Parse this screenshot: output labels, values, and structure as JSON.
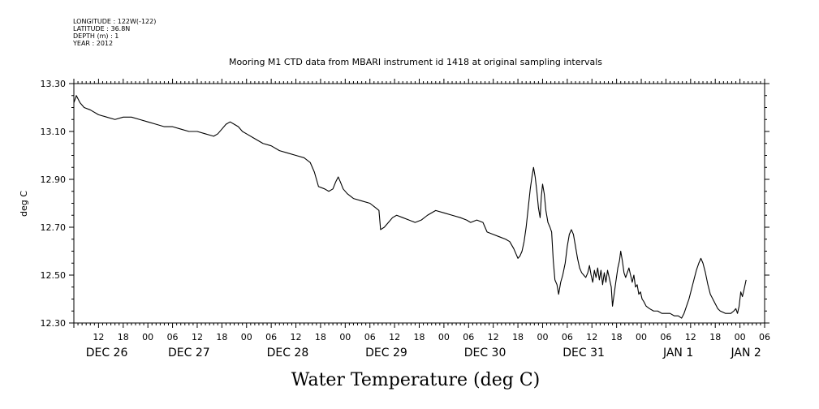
{
  "header": {
    "longitude": "LONGITUDE : 122W(-122)",
    "latitude": "LATITUDE : 36.8N",
    "depth": "DEPTH (m) : 1",
    "year": "YEAR : 2012"
  },
  "chart_data": {
    "type": "line",
    "title": "Mooring M1 CTD data from MBARI instrument id 1418 at original sampling intervals",
    "xlabel": "Water Temperature (deg C)",
    "ylabel": "deg C",
    "ylim": [
      12.3,
      13.3
    ],
    "xlim_hours": [
      0,
      168
    ],
    "y_ticks": [
      "12.30",
      "12.50",
      "12.70",
      "12.90",
      "13.10",
      "13.30"
    ],
    "x_hour_ticks": [
      {
        "h": 6,
        "label": "12"
      },
      {
        "h": 12,
        "label": "18"
      },
      {
        "h": 18,
        "label": "00"
      },
      {
        "h": 24,
        "label": "06"
      },
      {
        "h": 30,
        "label": "12"
      },
      {
        "h": 36,
        "label": "18"
      },
      {
        "h": 42,
        "label": "00"
      },
      {
        "h": 48,
        "label": "06"
      },
      {
        "h": 54,
        "label": "12"
      },
      {
        "h": 60,
        "label": "18"
      },
      {
        "h": 66,
        "label": "00"
      },
      {
        "h": 72,
        "label": "06"
      },
      {
        "h": 78,
        "label": "12"
      },
      {
        "h": 84,
        "label": "18"
      },
      {
        "h": 90,
        "label": "00"
      },
      {
        "h": 96,
        "label": "06"
      },
      {
        "h": 102,
        "label": "12"
      },
      {
        "h": 108,
        "label": "18"
      },
      {
        "h": 114,
        "label": "00"
      },
      {
        "h": 120,
        "label": "06"
      },
      {
        "h": 126,
        "label": "12"
      },
      {
        "h": 132,
        "label": "18"
      },
      {
        "h": 138,
        "label": "00"
      },
      {
        "h": 144,
        "label": "06"
      },
      {
        "h": 150,
        "label": "12"
      },
      {
        "h": 156,
        "label": "18"
      },
      {
        "h": 162,
        "label": "00"
      },
      {
        "h": 168,
        "label": "06"
      }
    ],
    "x_day_labels": [
      {
        "h": 8,
        "label": "DEC 26"
      },
      {
        "h": 28,
        "label": "DEC 27"
      },
      {
        "h": 52,
        "label": "DEC 28"
      },
      {
        "h": 76,
        "label": "DEC 29"
      },
      {
        "h": 100,
        "label": "DEC 30"
      },
      {
        "h": 124,
        "label": "DEC 31"
      },
      {
        "h": 147,
        "label": "JAN 1"
      },
      {
        "h": 163.5,
        "label": "JAN 2"
      }
    ],
    "series": [
      {
        "points": [
          [
            0,
            13.22
          ],
          [
            0.6,
            13.25
          ],
          [
            1.5,
            13.22
          ],
          [
            2.5,
            13.2
          ],
          [
            4,
            13.19
          ],
          [
            6,
            13.17
          ],
          [
            8,
            13.16
          ],
          [
            10,
            13.15
          ],
          [
            12,
            13.16
          ],
          [
            14,
            13.16
          ],
          [
            16,
            13.15
          ],
          [
            18,
            13.14
          ],
          [
            20,
            13.13
          ],
          [
            22,
            13.12
          ],
          [
            24,
            13.12
          ],
          [
            26,
            13.11
          ],
          [
            28,
            13.1
          ],
          [
            30,
            13.1
          ],
          [
            32,
            13.09
          ],
          [
            34,
            13.08
          ],
          [
            35,
            13.09
          ],
          [
            36,
            13.11
          ],
          [
            37,
            13.13
          ],
          [
            38,
            13.14
          ],
          [
            39,
            13.13
          ],
          [
            40,
            13.12
          ],
          [
            41,
            13.1
          ],
          [
            42,
            13.09
          ],
          [
            44,
            13.07
          ],
          [
            46,
            13.05
          ],
          [
            48,
            13.04
          ],
          [
            50,
            13.02
          ],
          [
            52,
            13.01
          ],
          [
            54,
            13.0
          ],
          [
            56,
            12.99
          ],
          [
            57.5,
            12.97
          ],
          [
            58.5,
            12.93
          ],
          [
            59.5,
            12.87
          ],
          [
            61,
            12.86
          ],
          [
            62,
            12.85
          ],
          [
            63,
            12.86
          ],
          [
            63.7,
            12.89
          ],
          [
            64.3,
            12.91
          ],
          [
            64.8,
            12.89
          ],
          [
            65.5,
            12.86
          ],
          [
            66.5,
            12.84
          ],
          [
            68,
            12.82
          ],
          [
            70,
            12.81
          ],
          [
            72,
            12.8
          ],
          [
            73.5,
            12.78
          ],
          [
            74.2,
            12.77
          ],
          [
            74.6,
            12.69
          ],
          [
            75.5,
            12.7
          ],
          [
            76.5,
            12.72
          ],
          [
            77.5,
            12.74
          ],
          [
            78.5,
            12.75
          ],
          [
            80,
            12.74
          ],
          [
            81.5,
            12.73
          ],
          [
            83,
            12.72
          ],
          [
            84.5,
            12.73
          ],
          [
            86,
            12.75
          ],
          [
            88,
            12.77
          ],
          [
            90,
            12.76
          ],
          [
            92,
            12.75
          ],
          [
            94,
            12.74
          ],
          [
            95.5,
            12.73
          ],
          [
            96.5,
            12.72
          ],
          [
            98,
            12.73
          ],
          [
            99.5,
            12.72
          ],
          [
            100.5,
            12.68
          ],
          [
            102,
            12.67
          ],
          [
            103.5,
            12.66
          ],
          [
            105,
            12.65
          ],
          [
            106,
            12.64
          ],
          [
            107,
            12.61
          ],
          [
            107.5,
            12.59
          ],
          [
            108,
            12.57
          ],
          [
            108.5,
            12.58
          ],
          [
            109,
            12.6
          ],
          [
            109.5,
            12.64
          ],
          [
            110,
            12.7
          ],
          [
            110.5,
            12.78
          ],
          [
            111,
            12.86
          ],
          [
            111.5,
            12.92
          ],
          [
            111.8,
            12.95
          ],
          [
            112.2,
            12.91
          ],
          [
            112.6,
            12.85
          ],
          [
            113,
            12.78
          ],
          [
            113.4,
            12.74
          ],
          [
            113.7,
            12.83
          ],
          [
            114,
            12.88
          ],
          [
            114.4,
            12.84
          ],
          [
            114.8,
            12.77
          ],
          [
            115.3,
            12.72
          ],
          [
            115.8,
            12.7
          ],
          [
            116.2,
            12.68
          ],
          [
            116.6,
            12.56
          ],
          [
            117,
            12.48
          ],
          [
            117.5,
            12.46
          ],
          [
            117.9,
            12.42
          ],
          [
            118.4,
            12.47
          ],
          [
            118.9,
            12.5
          ],
          [
            119.5,
            12.55
          ],
          [
            120,
            12.62
          ],
          [
            120.5,
            12.67
          ],
          [
            121,
            12.69
          ],
          [
            121.5,
            12.67
          ],
          [
            122,
            12.62
          ],
          [
            122.5,
            12.57
          ],
          [
            123,
            12.53
          ],
          [
            123.5,
            12.51
          ],
          [
            124,
            12.5
          ],
          [
            124.5,
            12.49
          ],
          [
            125,
            12.51
          ],
          [
            125.4,
            12.54
          ],
          [
            125.8,
            12.5
          ],
          [
            126.2,
            12.47
          ],
          [
            126.6,
            12.52
          ],
          [
            127,
            12.49
          ],
          [
            127.4,
            12.53
          ],
          [
            127.8,
            12.48
          ],
          [
            128.2,
            12.52
          ],
          [
            128.6,
            12.46
          ],
          [
            129,
            12.51
          ],
          [
            129.4,
            12.47
          ],
          [
            129.8,
            12.52
          ],
          [
            130.2,
            12.49
          ],
          [
            130.7,
            12.45
          ],
          [
            131,
            12.37
          ],
          [
            131.4,
            12.42
          ],
          [
            131.8,
            12.47
          ],
          [
            132.3,
            12.53
          ],
          [
            132.7,
            12.56
          ],
          [
            133,
            12.6
          ],
          [
            133.4,
            12.56
          ],
          [
            133.8,
            12.51
          ],
          [
            134.2,
            12.49
          ],
          [
            134.6,
            12.51
          ],
          [
            135,
            12.53
          ],
          [
            135.4,
            12.5
          ],
          [
            135.8,
            12.47
          ],
          [
            136.2,
            12.5
          ],
          [
            136.6,
            12.45
          ],
          [
            137,
            12.46
          ],
          [
            137.4,
            12.42
          ],
          [
            137.8,
            12.43
          ],
          [
            138.2,
            12.4
          ],
          [
            138.6,
            12.39
          ],
          [
            139.2,
            12.37
          ],
          [
            140,
            12.36
          ],
          [
            141,
            12.35
          ],
          [
            142,
            12.35
          ],
          [
            143,
            12.34
          ],
          [
            144,
            12.34
          ],
          [
            145,
            12.34
          ],
          [
            146,
            12.33
          ],
          [
            147,
            12.33
          ],
          [
            147.8,
            12.32
          ],
          [
            148.4,
            12.34
          ],
          [
            149,
            12.37
          ],
          [
            149.6,
            12.4
          ],
          [
            150.2,
            12.44
          ],
          [
            150.8,
            12.48
          ],
          [
            151.4,
            12.52
          ],
          [
            152,
            12.55
          ],
          [
            152.5,
            12.57
          ],
          [
            153,
            12.55
          ],
          [
            153.6,
            12.51
          ],
          [
            154.2,
            12.46
          ],
          [
            154.8,
            12.42
          ],
          [
            155.4,
            12.4
          ],
          [
            156,
            12.38
          ],
          [
            156.6,
            12.36
          ],
          [
            157.2,
            12.35
          ],
          [
            158.5,
            12.34
          ],
          [
            159.8,
            12.34
          ],
          [
            160.5,
            12.35
          ],
          [
            161,
            12.36
          ],
          [
            161.4,
            12.34
          ],
          [
            161.8,
            12.37
          ],
          [
            162.2,
            12.43
          ],
          [
            162.6,
            12.41
          ],
          [
            163,
            12.44
          ],
          [
            163.5,
            12.48
          ]
        ]
      }
    ]
  }
}
